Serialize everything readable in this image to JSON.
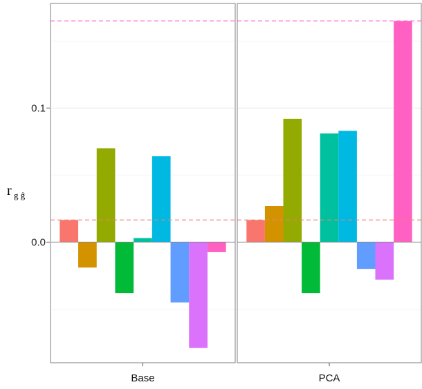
{
  "chart_data": {
    "type": "bar",
    "facets": [
      "Base",
      "PCA"
    ],
    "ylabel": "r",
    "ylabel_subscript": "g ĝ",
    "y_ticks": [
      0.0,
      0.1
    ],
    "y_tick_labels": [
      "0.0",
      "0.1"
    ],
    "ylim": [
      -0.09,
      0.178
    ],
    "grid": true,
    "legend": "none",
    "reference_lines": [
      {
        "value": 0.0165,
        "style": "dashed",
        "color": "#F08070"
      },
      {
        "value": 0.165,
        "style": "dashed",
        "color": "#FF66CC"
      }
    ],
    "bar_colors": [
      "#F8766D",
      "#D39200",
      "#93AA00",
      "#00BA38",
      "#00C19F",
      "#00B9E3",
      "#619CFF",
      "#DB72FB",
      "#FF61C3"
    ],
    "series": [
      {
        "values": [
          0.0165,
          -0.019,
          0.07,
          -0.038,
          0.003,
          0.064,
          -0.045,
          -0.079,
          -0.0075
        ]
      },
      {
        "values": [
          0.0165,
          0.027,
          0.092,
          -0.038,
          0.081,
          0.083,
          -0.02,
          -0.028,
          0.165
        ]
      }
    ]
  }
}
